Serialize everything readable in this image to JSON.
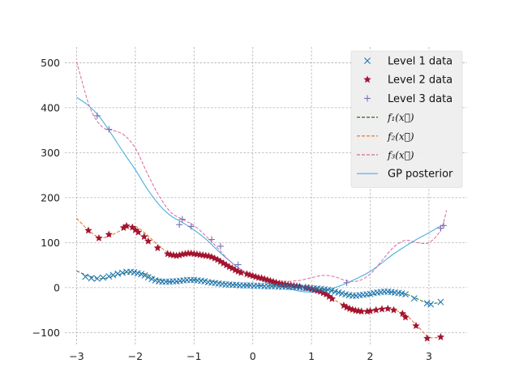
{
  "chart_data": {
    "type": "line",
    "title": "",
    "xlabel": "",
    "ylabel": "",
    "xlim": [
      -3.2,
      3.65
    ],
    "ylim": [
      -130,
      535
    ],
    "xticks": [
      -3,
      -2,
      -1,
      0,
      1,
      2,
      3
    ],
    "yticks": [
      -100,
      0,
      100,
      200,
      300,
      400,
      500
    ],
    "grid": true,
    "legend_position": "top-right",
    "legend": [
      {
        "label": "Level 1 data",
        "kind": "marker",
        "marker": "x",
        "color": "#1f77b4"
      },
      {
        "label": "Level 2 data",
        "kind": "marker",
        "marker": "star",
        "color": "#a2142f"
      },
      {
        "label": "Level 3 data",
        "kind": "marker",
        "marker": "plus",
        "color": "#7570b3"
      },
      {
        "label": "f₁(x⃗)",
        "kind": "line",
        "dash": true,
        "color": "#2e6b16"
      },
      {
        "label": "f₂(x⃗)",
        "kind": "line",
        "dash": true,
        "color": "#e2711d"
      },
      {
        "label": "f₃(x⃗)",
        "kind": "line",
        "dash": true,
        "color": "#d6699e"
      },
      {
        "label": "GP posterior",
        "kind": "line",
        "dash": false,
        "color": "#4aaee0"
      }
    ],
    "series": [
      {
        "role": "f1",
        "color": "#2e6b16",
        "x": [
          -3.0,
          -2.8,
          -2.6,
          -2.4,
          -2.2,
          -2.0,
          -1.8,
          -1.6,
          -1.4,
          -1.2,
          -1.0,
          -0.8,
          -0.6,
          -0.4,
          -0.2,
          0.0,
          0.2,
          0.4,
          0.6,
          0.8,
          1.0,
          1.2,
          1.4,
          1.6,
          1.8,
          2.0,
          2.2,
          2.4,
          2.6,
          2.8,
          3.0,
          3.2
        ],
        "y": [
          37,
          26,
          20,
          24,
          32,
          35,
          29,
          18,
          13,
          14,
          17,
          16,
          12,
          8,
          6,
          5,
          4,
          3,
          2,
          1,
          -1,
          -3,
          -8,
          -14,
          -18,
          -17,
          -11,
          -10,
          -14,
          -25,
          -35,
          -33
        ]
      },
      {
        "role": "f2",
        "color": "#e2711d",
        "x": [
          -3.0,
          -2.8,
          -2.6,
          -2.4,
          -2.2,
          -2.0,
          -1.8,
          -1.6,
          -1.4,
          -1.2,
          -1.0,
          -0.8,
          -0.6,
          -0.4,
          -0.2,
          0.0,
          0.2,
          0.4,
          0.6,
          0.8,
          1.0,
          1.2,
          1.4,
          1.6,
          1.8,
          2.0,
          2.2,
          2.4,
          2.6,
          2.8,
          3.0,
          3.2
        ],
        "y": [
          154,
          128,
          111,
          117,
          130,
          136,
          117,
          93,
          75,
          72,
          75,
          72,
          60,
          46,
          35,
          26,
          20,
          12,
          6,
          2,
          -3,
          -12,
          -28,
          -42,
          -51,
          -53,
          -47,
          -50,
          -60,
          -85,
          -110,
          -110
        ]
      },
      {
        "role": "f3",
        "color": "#d6699e",
        "x": [
          -3.0,
          -2.9,
          -2.8,
          -2.7,
          -2.6,
          -2.5,
          -2.4,
          -2.2,
          -2.0,
          -1.8,
          -1.6,
          -1.4,
          -1.2,
          -1.0,
          -0.8,
          -0.6,
          -0.4,
          -0.2,
          0.0,
          0.2,
          0.4,
          0.6,
          0.8,
          1.0,
          1.2,
          1.4,
          1.6,
          1.8,
          2.0,
          2.2,
          2.4,
          2.6,
          2.8,
          3.0,
          3.2,
          3.3
        ],
        "y": [
          502,
          455,
          410,
          380,
          362,
          352,
          350,
          340,
          310,
          255,
          205,
          168,
          152,
          138,
          115,
          88,
          60,
          40,
          28,
          20,
          15,
          14,
          16,
          22,
          27,
          24,
          15,
          15,
          30,
          60,
          90,
          105,
          100,
          100,
          128,
          172
        ]
      },
      {
        "role": "gp",
        "color": "#4aaee0",
        "x": [
          -3.0,
          -2.8,
          -2.6,
          -2.4,
          -2.2,
          -2.0,
          -1.8,
          -1.6,
          -1.4,
          -1.2,
          -1.0,
          -0.8,
          -0.6,
          -0.4,
          -0.2,
          0.0,
          0.2,
          0.4,
          0.6,
          0.8,
          1.0,
          1.2,
          1.4,
          1.6,
          1.8,
          2.0,
          2.2,
          2.4,
          2.6,
          2.8,
          3.0,
          3.2
        ],
        "y": [
          423,
          405,
          378,
          340,
          300,
          262,
          220,
          185,
          160,
          145,
          128,
          108,
          83,
          60,
          40,
          25,
          13,
          5,
          -2,
          -8,
          -10,
          -8,
          0,
          10,
          22,
          36,
          55,
          75,
          92,
          108,
          122,
          137
        ]
      }
    ],
    "points": [
      {
        "role": "level1",
        "marker": "x",
        "color": "#1f77b4",
        "x": [
          -2.85,
          -2.75,
          -2.65,
          -2.55,
          -2.45,
          -2.38,
          -2.3,
          -2.22,
          -2.15,
          -2.08,
          -2.02,
          -1.96,
          -1.9,
          -1.84,
          -1.78,
          -1.72,
          -1.66,
          -1.6,
          -1.54,
          -1.48,
          -1.42,
          -1.36,
          -1.3,
          -1.24,
          -1.18,
          -1.12,
          -1.06,
          -1.0,
          -0.94,
          -0.88,
          -0.82,
          -0.76,
          -0.7,
          -0.64,
          -0.58,
          -0.52,
          -0.46,
          -0.4,
          -0.34,
          -0.28,
          -0.22,
          -0.16,
          -0.1,
          -0.04,
          0.02,
          0.08,
          0.14,
          0.2,
          0.26,
          0.32,
          0.38,
          0.44,
          0.5,
          0.56,
          0.62,
          0.68,
          0.74,
          0.8,
          0.86,
          0.92,
          0.98,
          1.04,
          1.1,
          1.16,
          1.22,
          1.28,
          1.34,
          1.4,
          1.46,
          1.52,
          1.58,
          1.64,
          1.7,
          1.76,
          1.82,
          1.88,
          1.94,
          2.0,
          2.06,
          2.12,
          2.18,
          2.24,
          2.3,
          2.36,
          2.42,
          2.48,
          2.54,
          2.6,
          2.75,
          2.97,
          3.03,
          3.2
        ],
        "y": [
          24,
          21,
          20,
          22,
          25,
          28,
          31,
          33,
          35,
          35,
          34,
          32,
          30,
          27,
          23,
          19,
          16,
          14,
          13,
          13,
          13,
          14,
          14,
          15,
          16,
          17,
          17,
          17,
          16,
          15,
          14,
          12,
          11,
          10,
          9,
          8,
          7,
          7,
          6,
          6,
          5,
          5,
          5,
          5,
          4,
          4,
          4,
          3,
          3,
          3,
          3,
          2,
          2,
          2,
          1,
          1,
          1,
          0,
          0,
          -1,
          -1,
          -2,
          -2,
          -3,
          -4,
          -5,
          -7,
          -9,
          -11,
          -13,
          -15,
          -17,
          -18,
          -18,
          -17,
          -16,
          -15,
          -14,
          -12,
          -11,
          -10,
          -9,
          -9,
          -10,
          -11,
          -12,
          -13,
          -15,
          -24,
          -35,
          -37,
          -32
        ]
      },
      {
        "role": "level2",
        "marker": "star",
        "color": "#a2142f",
        "x": [
          -2.8,
          -2.62,
          -2.45,
          -2.2,
          -2.15,
          -2.05,
          -2.0,
          -1.95,
          -1.85,
          -1.78,
          -1.62,
          -1.45,
          -1.4,
          -1.35,
          -1.3,
          -1.25,
          -1.2,
          -1.15,
          -1.1,
          -1.05,
          -1.0,
          -0.95,
          -0.9,
          -0.85,
          -0.8,
          -0.75,
          -0.7,
          -0.65,
          -0.6,
          -0.55,
          -0.5,
          -0.45,
          -0.4,
          -0.35,
          -0.3,
          -0.25,
          -0.2,
          -0.1,
          -0.05,
          0.0,
          0.05,
          0.1,
          0.15,
          0.2,
          0.25,
          0.3,
          0.35,
          0.4,
          0.45,
          0.5,
          0.55,
          0.6,
          0.65,
          0.7,
          0.75,
          0.8,
          0.9,
          0.95,
          1.0,
          1.05,
          1.1,
          1.15,
          1.2,
          1.25,
          1.3,
          1.35,
          1.55,
          1.6,
          1.65,
          1.7,
          1.75,
          1.8,
          1.85,
          1.95,
          2.0,
          2.1,
          2.2,
          2.3,
          2.4,
          2.55,
          2.6,
          2.78,
          2.97,
          3.2
        ],
        "y": [
          127,
          110,
          118,
          133,
          137,
          134,
          128,
          123,
          113,
          103,
          88,
          75,
          73,
          72,
          71,
          72,
          74,
          75,
          76,
          76,
          75,
          74,
          73,
          72,
          71,
          70,
          68,
          65,
          62,
          58,
          54,
          50,
          46,
          43,
          39,
          36,
          33,
          30,
          28,
          26,
          24,
          22,
          21,
          19,
          17,
          15,
          13,
          11,
          9,
          8,
          7,
          6,
          5,
          4,
          3,
          2,
          0,
          -1,
          -3,
          -5,
          -7,
          -9,
          -12,
          -15,
          -20,
          -25,
          -40,
          -44,
          -47,
          -49,
          -51,
          -52,
          -53,
          -53,
          -52,
          -50,
          -48,
          -47,
          -50,
          -58,
          -66,
          -85,
          -113,
          -110
        ]
      },
      {
        "role": "level3",
        "marker": "plus",
        "color": "#7570b3",
        "x": [
          -2.65,
          -2.45,
          -1.25,
          -1.2,
          -1.05,
          -0.7,
          -0.55,
          -0.25,
          1.6,
          3.2,
          3.25
        ],
        "y": [
          382,
          352,
          140,
          152,
          136,
          107,
          92,
          51,
          11,
          132,
          138
        ]
      }
    ]
  }
}
